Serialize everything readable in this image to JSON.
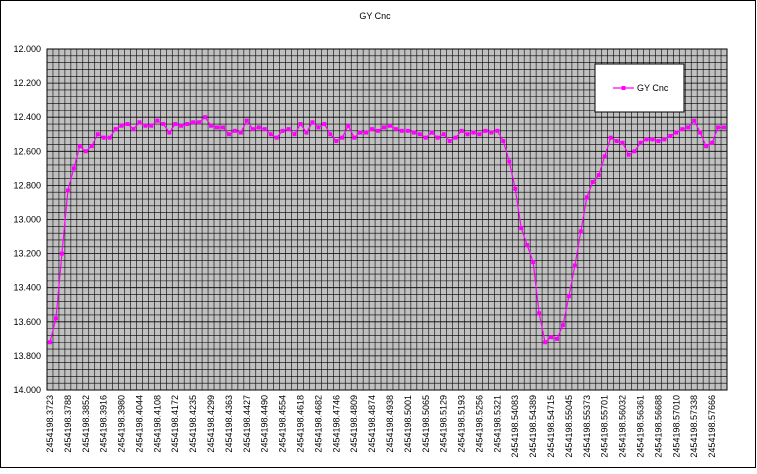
{
  "chart_data": {
    "type": "line",
    "title": "GY Cnc",
    "categories": [
      "2454198.3723",
      null,
      null,
      "2454198.3788",
      null,
      null,
      "2454198.3852",
      null,
      null,
      "2454198.3916",
      null,
      null,
      "2454198.3980",
      null,
      null,
      "2454198.4044",
      null,
      null,
      "2454198.4108",
      null,
      null,
      "2454198.4172",
      null,
      null,
      "2454198.4235",
      null,
      null,
      "2454198.4299",
      null,
      null,
      "2454198.4363",
      null,
      null,
      "2454198.4427",
      null,
      null,
      "2454198.4490",
      null,
      null,
      "2454198.4554",
      null,
      null,
      "2454198.4618",
      null,
      null,
      "2454198.4682",
      null,
      null,
      "2454198.4746",
      null,
      null,
      "2454198.4809",
      null,
      null,
      "2454198.4874",
      null,
      null,
      "2454198.4938",
      null,
      null,
      "2454198.5001",
      null,
      null,
      "2454198.5065",
      null,
      null,
      "2454198.5129",
      null,
      null,
      "2454198.5193",
      null,
      null,
      "2454198.5256",
      null,
      null,
      "2454198.5321",
      null,
      null,
      "2454198.54083",
      null,
      null,
      "2454198.54389",
      null,
      null,
      "2454198.54715",
      null,
      null,
      "2454198.55045",
      null,
      null,
      "2454198.55373",
      null,
      null,
      "2454198.55701",
      null,
      null,
      "2454198.56032",
      null,
      null,
      "2454198.56361",
      null,
      null,
      "2454198.56688",
      null,
      null,
      "2454198.57010",
      null,
      null,
      "2454198.57338",
      null,
      null,
      "2454198.57666",
      null,
      null
    ],
    "series": [
      {
        "name": "GY Cnc",
        "color": "#ff00ff",
        "values": [
          13.72,
          13.58,
          13.2,
          12.83,
          12.7,
          12.57,
          12.6,
          12.57,
          12.5,
          12.52,
          12.52,
          12.47,
          12.45,
          12.44,
          12.47,
          12.43,
          12.45,
          12.45,
          12.42,
          12.44,
          12.49,
          12.44,
          12.45,
          12.44,
          12.43,
          12.43,
          12.4,
          12.45,
          12.46,
          12.46,
          12.5,
          12.48,
          12.49,
          12.42,
          12.47,
          12.46,
          12.47,
          12.5,
          12.52,
          12.48,
          12.47,
          12.5,
          12.44,
          12.49,
          12.43,
          12.46,
          12.44,
          12.5,
          12.54,
          12.52,
          12.45,
          12.52,
          12.49,
          12.49,
          12.47,
          12.48,
          12.46,
          12.45,
          12.47,
          12.48,
          12.48,
          12.49,
          12.5,
          12.52,
          12.49,
          12.52,
          12.5,
          12.54,
          12.52,
          12.48,
          12.5,
          12.49,
          12.5,
          12.48,
          12.49,
          12.48,
          12.54,
          12.66,
          12.82,
          13.05,
          13.15,
          13.25,
          13.55,
          13.72,
          13.69,
          13.7,
          13.62,
          13.45,
          13.27,
          13.07,
          12.87,
          12.78,
          12.74,
          12.63,
          12.52,
          12.54,
          12.55,
          12.62,
          12.6,
          12.55,
          12.53,
          12.53,
          12.54,
          12.53,
          12.51,
          12.49,
          12.47,
          12.46,
          12.42,
          12.49,
          12.57,
          12.55,
          12.46,
          12.46
        ]
      }
    ],
    "ylim": [
      12.0,
      14.0
    ],
    "y_inverted": true,
    "yticks": [
      {
        "value": 12.0,
        "label": "12.000"
      },
      {
        "value": 12.2,
        "label": "12.200"
      },
      {
        "value": 12.4,
        "label": "12.400"
      },
      {
        "value": 12.6,
        "label": "12.600"
      },
      {
        "value": 12.8,
        "label": "12.800"
      },
      {
        "value": 13.0,
        "label": "13.000"
      },
      {
        "value": 13.2,
        "label": "13.200"
      },
      {
        "value": 13.4,
        "label": "13.400"
      },
      {
        "value": 13.6,
        "label": "13.600"
      },
      {
        "value": 13.8,
        "label": "13.800"
      },
      {
        "value": 14.0,
        "label": "14.000"
      }
    ],
    "grid": true,
    "plot_background": "#c0c0c0",
    "legend_position": "upper right"
  }
}
